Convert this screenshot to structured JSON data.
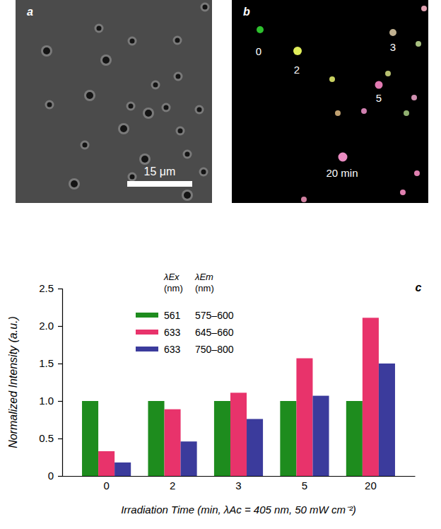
{
  "panels": {
    "a": {
      "label": "a",
      "scale_bar": "15 μm"
    },
    "b": {
      "label": "b",
      "annotations": [
        "0",
        "2",
        "3",
        "5",
        "20 min"
      ]
    }
  },
  "chart_data": {
    "type": "bar",
    "panel_label": "c",
    "x_label": "Irradiation Time (min, λAc = 405 nm, 50 mW cm⁻²)",
    "y_label": "Normalized Intensity (a.u.)",
    "categories": [
      "0",
      "2",
      "3",
      "5",
      "20"
    ],
    "legend_header": [
      {
        "symbol": "λEx",
        "unit": "(nm)"
      },
      {
        "symbol": "λEm",
        "unit": "(nm)"
      }
    ],
    "series": [
      {
        "name": "561 575–600",
        "color": "#1e8c1e",
        "values": [
          1.0,
          1.0,
          1.0,
          1.0,
          1.0
        ]
      },
      {
        "name": "633 645–660",
        "color": "#e8336b",
        "values": [
          0.33,
          0.89,
          1.11,
          1.57,
          2.11
        ]
      },
      {
        "name": "633 750–800",
        "color": "#3b3b9c",
        "values": [
          0.18,
          0.46,
          0.76,
          1.07,
          1.5
        ]
      }
    ],
    "ylim": [
      0,
      2.5
    ],
    "yticks": [
      0,
      0.5,
      {
        "value": 1,
        "label": "1.0"
      },
      1.5,
      {
        "value": 2,
        "label": "2.0"
      },
      2.5
    ],
    "grid": false,
    "legend": "upper left"
  }
}
